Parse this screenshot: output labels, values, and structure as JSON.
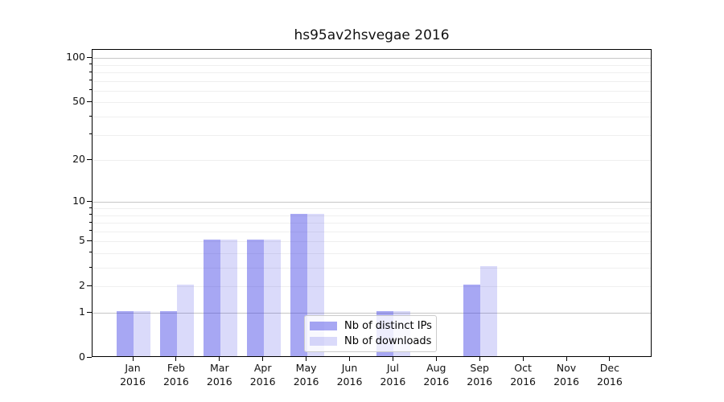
{
  "chart_data": {
    "type": "bar",
    "title": "hs95av2hsvegae 2016",
    "categories": [
      "Jan 2016",
      "Feb 2016",
      "Mar 2016",
      "Apr 2016",
      "May 2016",
      "Jun 2016",
      "Jul 2016",
      "Aug 2016",
      "Sep 2016",
      "Oct 2016",
      "Nov 2016",
      "Dec 2016"
    ],
    "series": [
      {
        "name": "Nb of distinct IPs",
        "color": "rgba(60,60,228,0.45)",
        "values": [
          1,
          1,
          5,
          5,
          8,
          0,
          1,
          0,
          2,
          0,
          0,
          0
        ]
      },
      {
        "name": "Nb of downloads",
        "color": "rgba(60,60,228,0.19)",
        "values": [
          1,
          2,
          5,
          5,
          8,
          0,
          1,
          0,
          3,
          0,
          0,
          0
        ]
      }
    ],
    "xlabel": "",
    "ylabel": "",
    "yscale": "log10(1+y)",
    "yticks": [
      0,
      1,
      2,
      5,
      10,
      20,
      50,
      100
    ],
    "ylim": [
      0,
      112
    ],
    "grid": {
      "on": true,
      "major_lines": [
        1,
        10,
        100
      ],
      "minor_lines": [
        2,
        3,
        4,
        5,
        6,
        7,
        8,
        9,
        20,
        30,
        40,
        50,
        60,
        70,
        80,
        90
      ],
      "major_color": "#c6c6c6",
      "minor_color": "#efefef"
    },
    "legend": {
      "position": "inside bottom-center",
      "labels": [
        "Nb of distinct IPs",
        "Nb of downloads"
      ]
    }
  }
}
